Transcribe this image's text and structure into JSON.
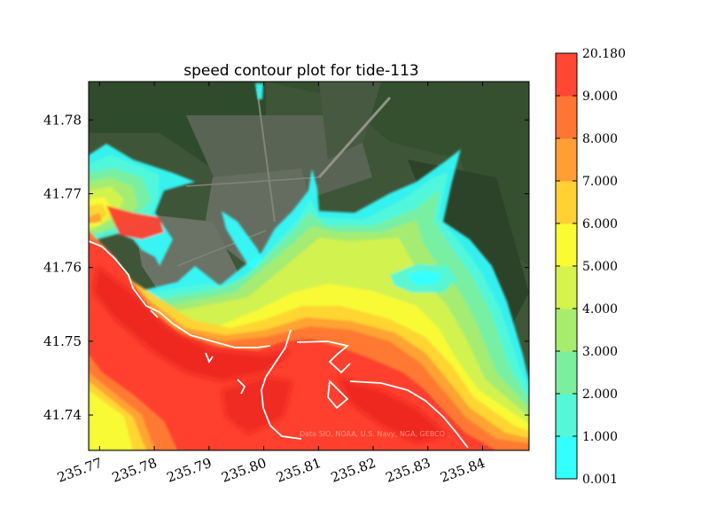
{
  "chart_data": {
    "type": "heatmap",
    "title": "speed contour plot for tide-113",
    "xlabel": "",
    "ylabel": "",
    "xlim": [
      235.768,
      235.8485
    ],
    "ylim": [
      41.7352,
      41.7852
    ],
    "x_ticks": [
      235.77,
      235.78,
      235.79,
      235.8,
      235.81,
      235.82,
      235.83,
      235.84
    ],
    "x_tick_labels": [
      "235.77",
      "235.78",
      "235.79",
      "235.80",
      "235.81",
      "235.82",
      "235.83",
      "235.84"
    ],
    "y_ticks": [
      41.74,
      41.75,
      41.76,
      41.77,
      41.78
    ],
    "y_tick_labels": [
      "41.74",
      "41.75",
      "41.76",
      "41.77",
      "41.78"
    ],
    "colorbar": {
      "levels": [
        "0.001",
        "1.000",
        "2.000",
        "3.000",
        "4.000",
        "5.000",
        "6.000",
        "7.000",
        "8.000",
        "9.000",
        "20.180"
      ],
      "colors": [
        "#33ffff",
        "#55f7d8",
        "#7cef9e",
        "#a8ec6e",
        "#d6f24c",
        "#fbfb33",
        "#ffd133",
        "#ff9e33",
        "#ff7533",
        "#ff4733"
      ]
    },
    "background": "satellite imagery",
    "attribution": "Data SIO, NOAA, U.S. Navy, NGA, GEBCO",
    "grid": false
  }
}
